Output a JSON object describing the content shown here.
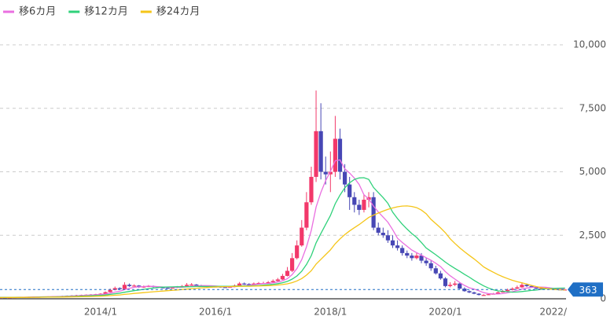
{
  "chart_data": {
    "type": "candlestick",
    "categories": [
      null,
      null,
      null,
      null,
      null,
      null,
      null,
      null,
      null,
      null,
      null,
      null,
      null,
      null,
      null,
      null,
      null,
      null,
      null,
      null,
      null,
      "2014/1",
      null,
      null,
      null,
      null,
      null,
      null,
      null,
      null,
      null,
      null,
      null,
      null,
      null,
      null,
      null,
      null,
      null,
      null,
      null,
      null,
      null,
      null,
      null,
      "2016/1",
      null,
      null,
      null,
      null,
      null,
      null,
      null,
      null,
      null,
      null,
      null,
      null,
      null,
      null,
      null,
      null,
      null,
      null,
      null,
      null,
      null,
      null,
      null,
      "2018/1",
      null,
      null,
      null,
      null,
      null,
      null,
      null,
      null,
      null,
      null,
      null,
      null,
      null,
      null,
      null,
      null,
      null,
      null,
      null,
      null,
      null,
      null,
      null,
      "2020/1",
      null,
      null,
      null,
      null,
      null,
      null,
      null,
      null,
      null,
      null,
      null,
      null,
      null,
      null,
      null,
      null,
      null,
      null,
      null,
      null,
      null,
      null,
      null,
      "2022/",
      null
    ],
    "open": [
      58,
      60,
      55,
      60,
      65,
      70,
      70,
      75,
      80,
      80,
      85,
      90,
      95,
      100,
      110,
      120,
      130,
      140,
      150,
      160,
      170,
      180,
      200,
      260,
      350,
      420,
      380,
      550,
      500,
      520,
      450,
      480,
      500,
      470,
      450,
      430,
      420,
      440,
      470,
      500,
      550,
      560,
      520,
      500,
      480,
      470,
      480,
      460,
      450,
      470,
      520,
      600,
      580,
      560,
      600,
      620,
      620,
      650,
      700,
      760,
      900,
      1100,
      1600,
      2100,
      2800,
      3800,
      4800,
      6600,
      5000,
      4900,
      5000,
      6300,
      5000,
      4500,
      4000,
      3700,
      3500,
      3900,
      4000,
      2800,
      2600,
      2500,
      2300,
      2100,
      2000,
      1800,
      1700,
      1600,
      1700,
      1500,
      1400,
      1200,
      1000,
      800,
      500,
      550,
      600,
      400,
      300,
      250,
      200,
      150,
      150,
      180,
      200,
      250,
      300,
      350,
      400,
      450,
      550,
      500,
      450,
      400,
      420,
      400,
      380,
      370,
      360
    ],
    "high": [
      65,
      64,
      65,
      70,
      76,
      78,
      82,
      86,
      88,
      92,
      98,
      104,
      110,
      120,
      130,
      140,
      152,
      162,
      172,
      185,
      195,
      220,
      290,
      400,
      480,
      450,
      650,
      600,
      570,
      540,
      520,
      540,
      520,
      490,
      470,
      460,
      470,
      500,
      540,
      620,
      620,
      580,
      550,
      520,
      510,
      510,
      500,
      480,
      500,
      560,
      660,
      640,
      610,
      640,
      660,
      670,
      700,
      760,
      820,
      980,
      1250,
      1800,
      2300,
      3100,
      4200,
      5200,
      8200,
      7700,
      5600,
      5800,
      7200,
      6700,
      5300,
      4800,
      4200,
      3900,
      4100,
      4200,
      4200,
      3000,
      2800,
      2700,
      2500,
      2300,
      2100,
      1900,
      1800,
      1800,
      1800,
      1600,
      1500,
      1300,
      1100,
      850,
      650,
      700,
      650,
      450,
      330,
      280,
      220,
      180,
      200,
      230,
      290,
      340,
      400,
      450,
      520,
      650,
      600,
      530,
      480,
      460,
      440,
      420,
      400,
      390,
      375
    ],
    "low": [
      52,
      50,
      52,
      56,
      60,
      64,
      66,
      70,
      74,
      76,
      80,
      85,
      90,
      95,
      105,
      115,
      125,
      135,
      145,
      155,
      165,
      170,
      190,
      250,
      330,
      350,
      370,
      470,
      480,
      430,
      430,
      460,
      450,
      420,
      410,
      400,
      400,
      420,
      450,
      480,
      520,
      500,
      480,
      460,
      450,
      450,
      440,
      430,
      430,
      450,
      500,
      550,
      540,
      540,
      580,
      590,
      600,
      630,
      680,
      740,
      880,
      1050,
      1550,
      2050,
      2700,
      3700,
      4600,
      4700,
      4500,
      4200,
      4800,
      4700,
      4200,
      3500,
      3400,
      3300,
      3400,
      3600,
      2700,
      2500,
      2400,
      2200,
      2000,
      1900,
      1700,
      1600,
      1500,
      1550,
      1400,
      1300,
      1100,
      950,
      750,
      450,
      450,
      500,
      380,
      280,
      220,
      180,
      130,
      130,
      140,
      170,
      190,
      240,
      280,
      330,
      380,
      430,
      470,
      430,
      380,
      390,
      380,
      360,
      350,
      345,
      350
    ],
    "close": [
      60,
      55,
      60,
      65,
      70,
      70,
      75,
      80,
      80,
      85,
      90,
      95,
      100,
      110,
      120,
      130,
      140,
      150,
      160,
      170,
      180,
      200,
      260,
      350,
      420,
      380,
      550,
      500,
      520,
      450,
      480,
      500,
      470,
      450,
      430,
      420,
      440,
      470,
      500,
      550,
      560,
      520,
      500,
      480,
      470,
      480,
      460,
      450,
      470,
      520,
      600,
      580,
      560,
      600,
      620,
      620,
      650,
      700,
      760,
      900,
      1100,
      1600,
      2100,
      2800,
      3800,
      4800,
      6600,
      5000,
      4900,
      5000,
      6300,
      5000,
      4500,
      4000,
      3700,
      3500,
      3900,
      4000,
      2800,
      2600,
      2500,
      2300,
      2100,
      2000,
      1800,
      1700,
      1600,
      1700,
      1500,
      1400,
      1200,
      1000,
      800,
      500,
      550,
      600,
      400,
      300,
      250,
      200,
      150,
      150,
      180,
      200,
      250,
      300,
      350,
      400,
      450,
      550,
      500,
      450,
      400,
      420,
      400,
      380,
      370,
      360,
      363
    ],
    "up_color": "#f2386a",
    "down_color": "#4747b5",
    "series": [
      {
        "name": "移6カ月",
        "color": "#ea6fe0",
        "values": [
          55,
          56,
          57,
          59,
          62,
          63,
          66,
          70,
          73,
          76,
          80,
          84,
          88,
          93,
          98,
          105,
          113,
          125,
          135,
          145,
          155,
          167,
          187,
          220,
          263,
          298,
          360,
          410,
          453,
          470,
          480,
          500,
          487,
          478,
          463,
          458,
          452,
          447,
          452,
          468,
          490,
          507,
          517,
          518,
          513,
          502,
          485,
          473,
          468,
          475,
          497,
          513,
          530,
          555,
          580,
          597,
          605,
          625,
          658,
          708,
          788,
          952,
          1193,
          1543,
          2050,
          2700,
          3617,
          4183,
          4650,
          5017,
          5433,
          5467,
          5117,
          4950,
          4750,
          4500,
          4100,
          3933,
          3650,
          3417,
          3217,
          3017,
          2717,
          2383,
          2217,
          2067,
          1917,
          1817,
          1717,
          1617,
          1517,
          1400,
          1267,
          1067,
          908,
          775,
          642,
          525,
          433,
          383,
          317,
          242,
          205,
          188,
          188,
          205,
          238,
          280,
          325,
          383,
          425,
          450,
          458,
          462,
          453,
          425,
          403,
          388,
          382
        ]
      },
      {
        "name": "移12カ月",
        "color": "#2fd17a",
        "values": [
          52,
          53,
          54,
          55,
          57,
          58,
          61,
          63,
          65,
          68,
          71,
          74,
          77,
          82,
          86,
          91,
          97,
          105,
          112,
          119,
          127,
          136,
          150,
          173,
          199,
          222,
          258,
          289,
          320,
          345,
          372,
          399,
          424,
          444,
          458,
          464,
          466,
          474,
          470,
          473,
          477,
          483,
          485,
          483,
          483,
          485,
          488,
          490,
          493,
          497,
          505,
          508,
          508,
          514,
          524,
          536,
          551,
          569,
          594,
          632,
          684,
          775,
          899,
          1084,
          1354,
          1704,
          2203,
          2568,
          2922,
          3280,
          3742,
          4084,
          4367,
          4567,
          4700,
          4759,
          4767,
          4700,
          4384,
          4184,
          3984,
          3759,
          3409,
          3158,
          2934,
          2742,
          2567,
          2417,
          2217,
          2000,
          1867,
          1734,
          1592,
          1442,
          1313,
          1196,
          1080,
          963,
          850,
          725,
          613,
          509,
          424,
          357,
          311,
          294,
          278,
          261,
          265,
          286,
          307,
          328,
          348,
          371,
          389,
          404,
          414,
          419,
          420
        ]
      },
      {
        "name": "移24カ月",
        "color": "#f5c518",
        "values": [
          50,
          51,
          52,
          53,
          54,
          55,
          56,
          58,
          60,
          62,
          64,
          66,
          65,
          68,
          70,
          73,
          77,
          82,
          87,
          91,
          96,
          102,
          111,
          124,
          138,
          152,
          172,
          190,
          209,
          225,
          242,
          259,
          276,
          290,
          304,
          319,
          333,
          348,
          364,
          381,
          399,
          414,
          429,
          441,
          454,
          465,
          473,
          477,
          480,
          486,
          488,
          491,
          493,
          499,
          505,
          510,
          517,
          527,
          541,
          561,
          589,
          636,
          702,
          796,
          931,
          1109,
          1364,
          1552,
          1737,
          1925,
          2168,
          2358,
          2526,
          2671,
          2800,
          2922,
          3061,
          3202,
          3294,
          3376,
          3453,
          3520,
          3576,
          3621,
          3651,
          3655,
          3634,
          3588,
          3492,
          3350,
          3126,
          2959,
          2788,
          2601,
          2361,
          2177,
          2007,
          1853,
          1709,
          1571,
          1415,
          1255,
          1146,
          1046,
          952,
          868,
          796,
          729,
          673,
          625,
          579,
          527,
          481,
          440,
          407,
          381,
          363,
          357,
          349
        ]
      }
    ],
    "last_value": 363,
    "last_color": "#1f6fc5",
    "ylim": [
      0,
      10000
    ],
    "yticks": [
      0,
      {
        "value": 2500,
        "label": "2,500"
      },
      {
        "value": 5000,
        "label": "5,000"
      },
      {
        "value": 7500,
        "label": "7,500"
      },
      {
        "value": 10000,
        "label": "10,000"
      }
    ],
    "grid": true
  }
}
